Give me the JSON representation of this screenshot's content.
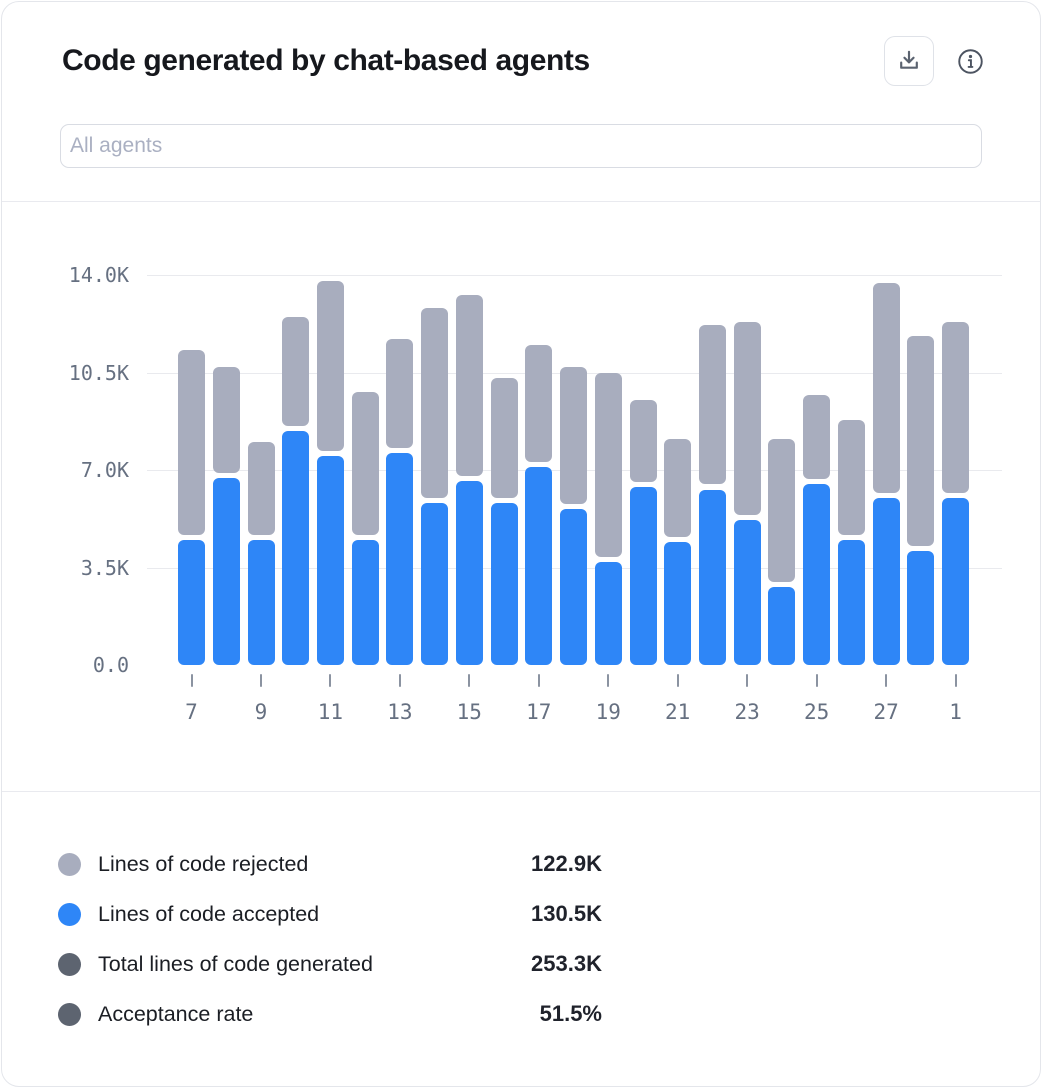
{
  "header": {
    "title": "Code generated by chat-based agents",
    "icons": {
      "download": "download-icon",
      "info": "info-icon"
    }
  },
  "filter": {
    "placeholder": "All agents"
  },
  "chart_data": {
    "type": "bar",
    "stacked": true,
    "title": "Code generated by chat-based agents",
    "xlabel": "",
    "ylabel": "",
    "ylim": [
      0,
      14000
    ],
    "grid": "horizontal",
    "legend_position": "bottom",
    "categories": [
      "7",
      "8",
      "9",
      "10",
      "11",
      "12",
      "13",
      "14",
      "15",
      "16",
      "17",
      "18",
      "19",
      "20",
      "21",
      "22",
      "23",
      "24",
      "25",
      "26",
      "27",
      "28",
      "1"
    ],
    "series": [
      {
        "name": "Lines of code accepted",
        "color": "#2e86f7",
        "values": [
          4500,
          6700,
          4500,
          8400,
          7500,
          4500,
          7600,
          5800,
          6600,
          5800,
          7100,
          5600,
          3700,
          6400,
          4400,
          6300,
          5200,
          2800,
          6500,
          4500,
          6000,
          4100,
          6000
        ]
      },
      {
        "name": "Lines of code rejected",
        "color": "#a8adbe",
        "values": [
          6800,
          4000,
          3500,
          4100,
          6300,
          5300,
          4100,
          7000,
          6700,
          4500,
          4400,
          5100,
          6800,
          3100,
          3700,
          5900,
          7100,
          5300,
          3200,
          4300,
          7700,
          7700,
          6300
        ]
      }
    ],
    "y_ticks": [
      {
        "label": "0.0",
        "value": 0
      },
      {
        "label": "3.5K",
        "value": 3500
      },
      {
        "label": "7.0K",
        "value": 7000
      },
      {
        "label": "10.5K",
        "value": 10500
      },
      {
        "label": "14.0K",
        "value": 14000
      }
    ],
    "x_tick_labels": [
      "7",
      "9",
      "11",
      "13",
      "15",
      "17",
      "19",
      "21",
      "23",
      "25",
      "27",
      "1"
    ]
  },
  "legend": {
    "items": [
      {
        "label": "Lines of code rejected",
        "value": "122.9K",
        "color": "#a8adbe"
      },
      {
        "label": "Lines of code accepted",
        "value": "130.5K",
        "color": "#2e86f7"
      },
      {
        "label": "Total lines of code generated",
        "value": "253.3K",
        "color": "#5d6470"
      },
      {
        "label": "Acceptance rate",
        "value": "51.5%",
        "color": "#5d6470"
      }
    ]
  },
  "colors": {
    "accent_blue": "#2e86f7",
    "bar_gray": "#a8adbe",
    "dark_dot": "#5d6470",
    "gridline": "#e9eaee",
    "axis_text": "#667081",
    "title_text": "#16181d",
    "card_border": "#e4e6eb"
  }
}
